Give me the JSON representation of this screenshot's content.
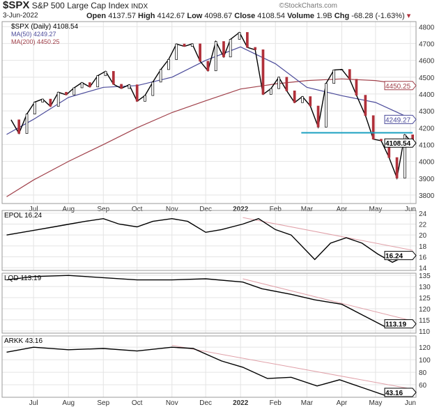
{
  "header": {
    "symbol": "$SPX",
    "name": "S&P 500 Large Cap Index",
    "exchange": "INDX",
    "watermark": "©StockCharts.com",
    "date": "3-Jun-2022",
    "open_label": "Open",
    "open": "4137.57",
    "high_label": "High",
    "high": "4142.67",
    "low_label": "Low",
    "low": "4098.67",
    "close_label": "Close",
    "close": "4108.54",
    "volume_label": "Volume",
    "volume": "1.9B",
    "chg_label": "Chg",
    "chg": "-68.28 (-1.63%)"
  },
  "colors": {
    "price": "#000000",
    "down": "#b0303a",
    "ma50": "#4a4a9a",
    "ma200": "#a0404a",
    "support": "#1aa0c0",
    "trend": "#e0a0a8",
    "grid": "#e4e4e4"
  },
  "chart_data": [
    {
      "type": "line",
      "title": "$SPX (Daily) 4108.54",
      "legend": [
        "$SPX (Daily) 4108.54",
        "MA(50) 4249.27",
        "MA(200) 4450.25"
      ],
      "legend_placement": "top-left",
      "ylim": [
        3750,
        4830
      ],
      "yticks": [
        3800,
        3900,
        4000,
        4100,
        4200,
        4300,
        4400,
        4500,
        4600,
        4700,
        4800
      ],
      "xticks": [
        "Jul",
        "Aug",
        "Sep",
        "Oct",
        "Nov",
        "Dec",
        "2022",
        "Feb",
        "Mar",
        "Apr",
        "May",
        "Jun"
      ],
      "grid": true,
      "last_labels": [
        "4450.25",
        "4249.27",
        "4108.54"
      ],
      "series": [
        {
          "name": "$SPX (Daily)",
          "x": [
            "2021-06-11",
            "2021-06-18",
            "2021-06-25",
            "2021-07-02",
            "2021-07-09",
            "2021-07-16",
            "2021-07-23",
            "2021-07-30",
            "2021-08-06",
            "2021-08-13",
            "2021-08-20",
            "2021-08-27",
            "2021-09-03",
            "2021-09-10",
            "2021-09-17",
            "2021-09-24",
            "2021-10-01",
            "2021-10-08",
            "2021-10-15",
            "2021-10-22",
            "2021-10-29",
            "2021-11-05",
            "2021-11-12",
            "2021-11-19",
            "2021-11-26",
            "2021-12-03",
            "2021-12-10",
            "2021-12-17",
            "2021-12-23",
            "2021-12-31",
            "2022-01-07",
            "2022-01-14",
            "2022-01-21",
            "2022-01-28",
            "2022-02-04",
            "2022-02-11",
            "2022-02-18",
            "2022-02-25",
            "2022-03-04",
            "2022-03-11",
            "2022-03-18",
            "2022-03-25",
            "2022-04-01",
            "2022-04-08",
            "2022-04-14",
            "2022-04-22",
            "2022-04-29",
            "2022-05-06",
            "2022-05-13",
            "2022-05-20",
            "2022-05-27",
            "2022-06-03"
          ],
          "values": [
            4247,
            4166,
            4281,
            4352,
            4370,
            4327,
            4411,
            4395,
            4437,
            4468,
            4442,
            4509,
            4535,
            4458,
            4433,
            4455,
            4357,
            4391,
            4471,
            4545,
            4605,
            4697,
            4683,
            4698,
            4595,
            4538,
            4712,
            4620,
            4725,
            4766,
            4677,
            4663,
            4398,
            4432,
            4500,
            4419,
            4349,
            4385,
            4329,
            4204,
            4463,
            4543,
            4546,
            4488,
            4393,
            4272,
            4132,
            4123,
            4023,
            3901,
            4158,
            4109
          ]
        },
        {
          "name": "MA(50)",
          "x": [
            "2021-06-07",
            "2021-07-01",
            "2021-08-01",
            "2021-09-01",
            "2021-10-01",
            "2021-11-01",
            "2021-12-01",
            "2022-01-01",
            "2022-02-01",
            "2022-03-01",
            "2022-04-01",
            "2022-05-01",
            "2022-06-03"
          ],
          "values": [
            4160,
            4250,
            4380,
            4440,
            4450,
            4500,
            4600,
            4680,
            4580,
            4440,
            4390,
            4350,
            4249.27
          ]
        },
        {
          "name": "MA(200)",
          "x": [
            "2021-06-07",
            "2021-07-01",
            "2021-08-01",
            "2021-09-01",
            "2021-10-01",
            "2021-11-01",
            "2021-12-01",
            "2022-01-01",
            "2022-02-01",
            "2022-03-01",
            "2022-04-01",
            "2022-05-01",
            "2022-06-03"
          ],
          "values": [
            3790,
            3890,
            4000,
            4100,
            4200,
            4290,
            4360,
            4430,
            4460,
            4480,
            4490,
            4480,
            4450.25
          ]
        }
      ],
      "support_line": {
        "value": 4170,
        "from": "2022-02-24",
        "to": "2022-06-03"
      }
    },
    {
      "type": "line",
      "legend": [
        "EPOL 16.24"
      ],
      "ylim": [
        13.5,
        24.5
      ],
      "yticks": [
        14,
        16,
        18,
        20,
        22,
        24
      ],
      "last_label": "16.24",
      "series": [
        {
          "name": "EPOL",
          "x": [
            "2021-06-07",
            "2021-06-21",
            "2021-07-05",
            "2021-07-19",
            "2021-08-02",
            "2021-08-16",
            "2021-09-01",
            "2021-09-15",
            "2021-10-01",
            "2021-10-15",
            "2021-11-01",
            "2021-11-15",
            "2021-12-01",
            "2021-12-15",
            "2022-01-03",
            "2022-01-17",
            "2022-02-01",
            "2022-02-15",
            "2022-03-01",
            "2022-03-08",
            "2022-03-22",
            "2022-04-05",
            "2022-04-19",
            "2022-05-03",
            "2022-05-16",
            "2022-05-24",
            "2022-06-03"
          ],
          "values": [
            20,
            20.5,
            21,
            21.5,
            22,
            22.5,
            23,
            22,
            21.5,
            22.5,
            23,
            22.5,
            20.5,
            21,
            22,
            23,
            21,
            20,
            17,
            15.5,
            18.5,
            19.5,
            18.5,
            16.5,
            15,
            15.8,
            16.24
          ]
        }
      ],
      "trend_line": {
        "from": [
          "2022-01-03",
          23.2
        ],
        "to": [
          "2022-06-03",
          17.2
        ]
      }
    },
    {
      "type": "line",
      "legend": [
        "LQD 113.19"
      ],
      "ylim": [
        109,
        136
      ],
      "yticks": [
        110,
        115,
        120,
        125,
        130,
        135
      ],
      "last_label": "113.19",
      "series": [
        {
          "name": "LQD",
          "x": [
            "2021-06-07",
            "2021-07-01",
            "2021-08-01",
            "2021-09-01",
            "2021-10-01",
            "2021-11-01",
            "2021-12-01",
            "2022-01-03",
            "2022-01-20",
            "2022-02-15",
            "2022-03-08",
            "2022-04-01",
            "2022-04-20",
            "2022-05-09",
            "2022-05-27",
            "2022-06-03"
          ],
          "values": [
            133,
            134.5,
            135,
            134,
            133,
            133,
            133.5,
            132,
            129,
            126.5,
            124,
            122,
            117,
            112,
            115,
            113.19
          ]
        }
      ],
      "trend_line": {
        "from": [
          "2022-01-03",
          133.5
        ],
        "to": [
          "2022-06-03",
          114.5
        ]
      }
    },
    {
      "type": "line",
      "legend": [
        "ARKK 43.16"
      ],
      "ylim": [
        40,
        138
      ],
      "yticks": [
        60,
        80,
        100,
        120
      ],
      "last_label": "43.16",
      "xticks": [
        "Jul",
        "Aug",
        "Sep",
        "Oct",
        "Nov",
        "Dec",
        "2022",
        "Feb",
        "Mar",
        "Apr",
        "May",
        "Jun"
      ],
      "series": [
        {
          "name": "ARKK",
          "x": [
            "2021-06-07",
            "2021-07-01",
            "2021-08-01",
            "2021-09-01",
            "2021-10-01",
            "2021-11-01",
            "2021-11-20",
            "2021-12-15",
            "2022-01-03",
            "2022-01-25",
            "2022-02-15",
            "2022-03-10",
            "2022-03-30",
            "2022-04-20",
            "2022-05-11",
            "2022-05-25",
            "2022-06-03"
          ],
          "values": [
            112,
            120,
            116,
            118,
            114,
            120,
            118,
            98,
            88,
            70,
            72,
            58,
            68,
            55,
            42,
            45,
            43.16
          ]
        }
      ],
      "trend_line": {
        "from": [
          "2021-11-01",
          123
        ],
        "to": [
          "2022-06-03",
          53
        ]
      }
    }
  ]
}
